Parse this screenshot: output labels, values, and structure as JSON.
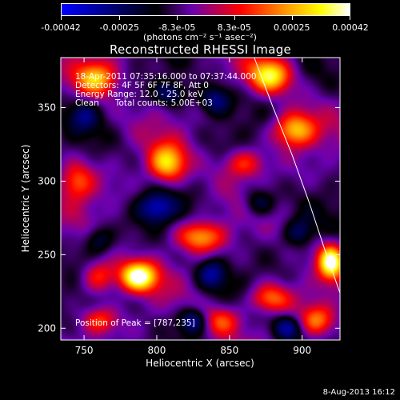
{
  "colorbar": {
    "ticks": [
      "-0.00042",
      "-0.00025",
      "-8.3e-05",
      "8.3e-05",
      "0.00025",
      "0.00042"
    ],
    "tick_values": [
      -0.00042,
      -0.00025,
      -8.3e-05,
      8.3e-05,
      0.00025,
      0.00042
    ],
    "range": [
      -0.00042,
      0.00042
    ],
    "units": "(photons cm⁻² s⁻¹ asec⁻²)",
    "colors": [
      "#0000ff",
      "#000000",
      "#6a00b0",
      "#ff0000",
      "#ff9a00",
      "#ffff00",
      "#ffffff"
    ]
  },
  "chart_data": {
    "type": "heatmap",
    "title": "Reconstructed RHESSI Image",
    "xlabel": "Heliocentric X (arcsec)",
    "ylabel": "Heliocentric Y (arcsec)",
    "xlim": [
      734,
      926
    ],
    "ylim": [
      192,
      384
    ],
    "x_ticks": [
      750,
      800,
      850,
      900
    ],
    "y_ticks": [
      200,
      250,
      300,
      350
    ],
    "x_tick_labels": [
      "750",
      "800",
      "850",
      "900"
    ],
    "y_tick_labels": [
      "200",
      "250",
      "300",
      "350"
    ],
    "annotations": [
      "18-Apr-2011 07:35:16.000 to 07:37:44.000",
      "Detectors: 4F 5F 6F 7F 8F, Att 0",
      "Energy Range: 12.0 - 25.0 keV",
      "Clean      Total counts: 5.00E+03",
      "Position of Peak = [787,235]"
    ],
    "peak": [
      787,
      235
    ],
    "limb_arc": [
      [
        867,
        384
      ],
      [
        880,
        350
      ],
      [
        893,
        318
      ],
      [
        905,
        285
      ],
      [
        915,
        255
      ],
      [
        926,
        224
      ]
    ],
    "blobs": [
      {
        "x": 787,
        "y": 235,
        "amp": 1.0,
        "sx": 9,
        "sy": 7
      },
      {
        "x": 920,
        "y": 245,
        "amp": 0.95,
        "sx": 6,
        "sy": 8
      },
      {
        "x": 807,
        "y": 312,
        "amp": 0.75,
        "sx": 9,
        "sy": 9
      },
      {
        "x": 878,
        "y": 372,
        "amp": 0.8,
        "sx": 10,
        "sy": 8
      },
      {
        "x": 758,
        "y": 370,
        "amp": 0.7,
        "sx": 10,
        "sy": 8
      },
      {
        "x": 895,
        "y": 335,
        "amp": 0.72,
        "sx": 10,
        "sy": 8
      },
      {
        "x": 860,
        "y": 312,
        "amp": 0.45,
        "sx": 10,
        "sy": 7
      },
      {
        "x": 745,
        "y": 300,
        "amp": 0.45,
        "sx": 8,
        "sy": 9
      },
      {
        "x": 830,
        "y": 262,
        "amp": 0.6,
        "sx": 11,
        "sy": 7
      },
      {
        "x": 878,
        "y": 220,
        "amp": 0.55,
        "sx": 10,
        "sy": 7
      },
      {
        "x": 910,
        "y": 205,
        "amp": 0.5,
        "sx": 8,
        "sy": 7
      },
      {
        "x": 845,
        "y": 205,
        "amp": 0.45,
        "sx": 9,
        "sy": 7
      },
      {
        "x": 760,
        "y": 235,
        "amp": 0.5,
        "sx": 8,
        "sy": 8
      },
      {
        "x": 760,
        "y": 205,
        "amp": 0.4,
        "sx": 8,
        "sy": 6
      },
      {
        "x": 840,
        "y": 355,
        "amp": -0.45,
        "sx": 8,
        "sy": 7
      },
      {
        "x": 800,
        "y": 282,
        "amp": -0.5,
        "sx": 9,
        "sy": 7
      },
      {
        "x": 870,
        "y": 285,
        "amp": -0.4,
        "sx": 8,
        "sy": 7
      },
      {
        "x": 838,
        "y": 237,
        "amp": -0.45,
        "sx": 7,
        "sy": 7
      },
      {
        "x": 825,
        "y": 205,
        "amp": -0.5,
        "sx": 7,
        "sy": 6
      },
      {
        "x": 890,
        "y": 200,
        "amp": -0.45,
        "sx": 7,
        "sy": 6
      },
      {
        "x": 898,
        "y": 265,
        "amp": -0.35,
        "sx": 7,
        "sy": 7
      },
      {
        "x": 750,
        "y": 345,
        "amp": -0.3,
        "sx": 7,
        "sy": 7
      },
      {
        "x": 810,
        "y": 360,
        "amp": -0.4,
        "sx": 8,
        "sy": 6
      },
      {
        "x": 760,
        "y": 260,
        "amp": -0.35,
        "sx": 7,
        "sy": 7
      }
    ]
  },
  "footer": {
    "date": "8-Aug-2013 16:12"
  }
}
